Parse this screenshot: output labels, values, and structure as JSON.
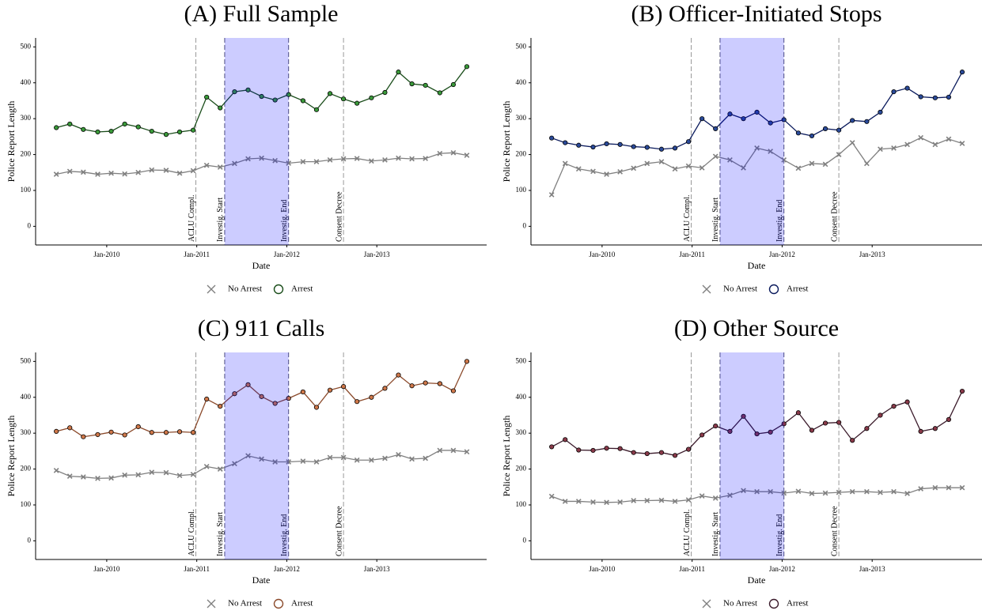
{
  "chart_data": [
    {
      "type": "line",
      "title": "(A) Full Sample",
      "x_label": "Date",
      "y_label": "Police Report Length",
      "x": [
        2009.44,
        2009.59,
        2009.74,
        2009.9,
        2010.05,
        2010.2,
        2010.35,
        2010.5,
        2010.66,
        2010.81,
        2010.96,
        2011.11,
        2011.26,
        2011.42,
        2011.57,
        2011.72,
        2011.87,
        2012.02,
        2012.18,
        2012.33,
        2012.48,
        2012.63,
        2012.78,
        2012.94,
        2013.09,
        2013.24,
        2013.39,
        2013.54,
        2013.7,
        2013.85,
        2014.0
      ],
      "series": [
        {
          "name": "No Arrest",
          "color": "#808080",
          "marker": "x",
          "values": [
            145,
            153,
            151,
            145,
            148,
            146,
            150,
            157,
            156,
            148,
            155,
            170,
            165,
            175,
            188,
            190,
            183,
            176,
            180,
            180,
            185,
            188,
            189,
            182,
            185,
            190,
            188,
            189,
            203,
            205,
            198
          ]
        },
        {
          "name": "Arrest",
          "color": "#1a4d1a",
          "fill": "#3a9a3a",
          "marker": "circle",
          "values": [
            275,
            285,
            270,
            263,
            265,
            285,
            277,
            265,
            256,
            263,
            268,
            360,
            330,
            375,
            380,
            362,
            352,
            367,
            350,
            325,
            370,
            355,
            343,
            358,
            373,
            430,
            397,
            393,
            372,
            395,
            445
          ]
        }
      ],
      "events": [
        {
          "x": 2010.99,
          "label": "ACLU Compl.",
          "color": "#222222"
        },
        {
          "x": 2011.31,
          "label": "Investig. Start",
          "color": "#222222"
        },
        {
          "x": 2012.02,
          "label": "Investig. End",
          "color": "#2a2aa0"
        },
        {
          "x": 2012.63,
          "label": "Consent Decree",
          "color": "#222222"
        }
      ],
      "xlim": [
        2009.21,
        2014.22
      ],
      "xticks": [
        {
          "value": 2010,
          "label": "Jan-2010"
        },
        {
          "value": 2011,
          "label": "Jan-2011"
        },
        {
          "value": 2012,
          "label": "Jan-2012"
        },
        {
          "value": 2013,
          "label": "Jan-2013"
        }
      ],
      "ylim": [
        -52,
        525
      ],
      "yticks": [
        0,
        100,
        200,
        300,
        400,
        500
      ]
    },
    {
      "type": "line",
      "title": "(B) Officer-Initiated Stops",
      "x_label": "Date",
      "y_label": "Police Report Length",
      "x": [
        2009.44,
        2009.59,
        2009.74,
        2009.9,
        2010.05,
        2010.2,
        2010.35,
        2010.5,
        2010.66,
        2010.81,
        2010.96,
        2011.11,
        2011.26,
        2011.42,
        2011.57,
        2011.72,
        2011.87,
        2012.02,
        2012.18,
        2012.33,
        2012.48,
        2012.63,
        2012.78,
        2012.94,
        2013.09,
        2013.24,
        2013.39,
        2013.54,
        2013.7,
        2013.85,
        2014.0
      ],
      "series": [
        {
          "name": "No Arrest",
          "color": "#808080",
          "marker": "x",
          "values": [
            88,
            175,
            160,
            153,
            145,
            152,
            162,
            175,
            180,
            160,
            168,
            163,
            195,
            185,
            163,
            218,
            209,
            185,
            162,
            175,
            173,
            200,
            233,
            175,
            215,
            218,
            228,
            247,
            228,
            243,
            231
          ]
        },
        {
          "name": "Arrest",
          "color": "#0a1a5c",
          "fill": "#2a4a9a",
          "marker": "circle",
          "values": [
            246,
            233,
            226,
            221,
            230,
            228,
            222,
            220,
            215,
            218,
            236,
            300,
            272,
            313,
            300,
            318,
            288,
            297,
            260,
            252,
            272,
            268,
            295,
            292,
            318,
            375,
            385,
            361,
            358,
            360,
            430
          ]
        }
      ],
      "events": [
        {
          "x": 2010.99,
          "label": "ACLU Compl.",
          "color": "#222222"
        },
        {
          "x": 2011.31,
          "label": "Investig. Start",
          "color": "#222222"
        },
        {
          "x": 2012.02,
          "label": "Investig. End",
          "color": "#2a2aa0"
        },
        {
          "x": 2012.63,
          "label": "Consent Decree",
          "color": "#222222"
        }
      ],
      "xlim": [
        2009.21,
        2014.22
      ],
      "xticks": [
        {
          "value": 2010,
          "label": "Jan-2010"
        },
        {
          "value": 2011,
          "label": "Jan-2011"
        },
        {
          "value": 2012,
          "label": "Jan-2012"
        },
        {
          "value": 2013,
          "label": "Jan-2013"
        }
      ],
      "ylim": [
        -52,
        525
      ],
      "yticks": [
        0,
        100,
        200,
        300,
        400,
        500
      ]
    },
    {
      "type": "line",
      "title": "(C) 911 Calls",
      "x_label": "Date",
      "y_label": "Police Report Length",
      "x": [
        2009.44,
        2009.59,
        2009.74,
        2009.9,
        2010.05,
        2010.2,
        2010.35,
        2010.5,
        2010.66,
        2010.81,
        2010.96,
        2011.11,
        2011.26,
        2011.42,
        2011.57,
        2011.72,
        2011.87,
        2012.02,
        2012.18,
        2012.33,
        2012.48,
        2012.63,
        2012.78,
        2012.94,
        2013.09,
        2013.24,
        2013.39,
        2013.54,
        2013.7,
        2013.85,
        2014.0
      ],
      "series": [
        {
          "name": "No Arrest",
          "color": "#808080",
          "marker": "x",
          "values": [
            196,
            180,
            178,
            174,
            175,
            183,
            184,
            191,
            190,
            182,
            185,
            207,
            200,
            215,
            237,
            228,
            220,
            220,
            222,
            220,
            232,
            232,
            225,
            225,
            230,
            240,
            228,
            230,
            252,
            252,
            248
          ]
        },
        {
          "name": "Arrest",
          "color": "#8b4a2b",
          "fill": "#d0784a",
          "marker": "circle",
          "values": [
            305,
            315,
            290,
            296,
            303,
            295,
            318,
            302,
            302,
            304,
            302,
            395,
            375,
            410,
            435,
            402,
            383,
            397,
            415,
            372,
            420,
            430,
            388,
            400,
            425,
            462,
            432,
            440,
            438,
            418,
            500
          ]
        }
      ],
      "events": [
        {
          "x": 2010.99,
          "label": "ACLU Compl.",
          "color": "#222222"
        },
        {
          "x": 2011.31,
          "label": "Investig. Start",
          "color": "#222222"
        },
        {
          "x": 2012.02,
          "label": "Investig. End",
          "color": "#2a2aa0"
        },
        {
          "x": 2012.63,
          "label": "Consent Decree",
          "color": "#222222"
        }
      ],
      "xlim": [
        2009.21,
        2014.22
      ],
      "xticks": [
        {
          "value": 2010,
          "label": "Jan-2010"
        },
        {
          "value": 2011,
          "label": "Jan-2011"
        },
        {
          "value": 2012,
          "label": "Jan-2012"
        },
        {
          "value": 2013,
          "label": "Jan-2013"
        }
      ],
      "ylim": [
        -52,
        525
      ],
      "yticks": [
        0,
        100,
        200,
        300,
        400,
        500
      ]
    },
    {
      "type": "line",
      "title": "(D) Other Source",
      "x_label": "Date",
      "y_label": "Police Report Length",
      "x": [
        2009.44,
        2009.59,
        2009.74,
        2009.9,
        2010.05,
        2010.2,
        2010.35,
        2010.5,
        2010.66,
        2010.81,
        2010.96,
        2011.11,
        2011.26,
        2011.42,
        2011.57,
        2011.72,
        2011.87,
        2012.02,
        2012.18,
        2012.33,
        2012.48,
        2012.63,
        2012.78,
        2012.94,
        2013.09,
        2013.24,
        2013.39,
        2013.54,
        2013.7,
        2013.85,
        2014.0
      ],
      "series": [
        {
          "name": "No Arrest",
          "color": "#808080",
          "marker": "x",
          "values": [
            124,
            110,
            110,
            108,
            107,
            108,
            112,
            112,
            113,
            110,
            114,
            125,
            119,
            127,
            140,
            137,
            137,
            133,
            138,
            132,
            133,
            135,
            137,
            137,
            135,
            137,
            132,
            145,
            148,
            148,
            148
          ]
        },
        {
          "name": "Arrest",
          "color": "#3a1a2a",
          "fill": "#8a3a4a",
          "marker": "circle",
          "values": [
            262,
            282,
            253,
            252,
            258,
            257,
            246,
            243,
            246,
            238,
            255,
            295,
            320,
            305,
            347,
            298,
            303,
            326,
            357,
            308,
            328,
            330,
            280,
            313,
            350,
            375,
            387,
            305,
            313,
            338,
            417
          ]
        }
      ],
      "events": [
        {
          "x": 2010.99,
          "label": "ACLU Compl.",
          "color": "#222222"
        },
        {
          "x": 2011.31,
          "label": "Investig. Start",
          "color": "#222222"
        },
        {
          "x": 2012.02,
          "label": "Investig. End",
          "color": "#2a2aa0"
        },
        {
          "x": 2012.63,
          "label": "Consent Decree",
          "color": "#222222"
        }
      ],
      "xlim": [
        2009.21,
        2014.22
      ],
      "xticks": [
        {
          "value": 2010,
          "label": "Jan-2010"
        },
        {
          "value": 2011,
          "label": "Jan-2011"
        },
        {
          "value": 2012,
          "label": "Jan-2012"
        },
        {
          "value": 2013,
          "label": "Jan-2013"
        }
      ],
      "ylim": [
        -52,
        525
      ],
      "yticks": [
        0,
        100,
        200,
        300,
        400,
        500
      ]
    }
  ]
}
